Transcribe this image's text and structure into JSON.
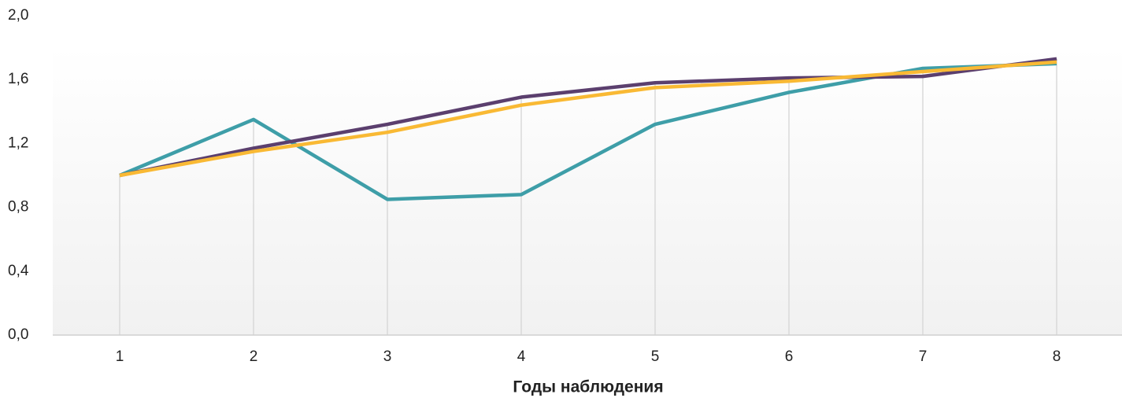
{
  "chart_data": {
    "type": "line",
    "xlabel": "Годы наблюдения",
    "categories": [
      "1",
      "2",
      "3",
      "4",
      "5",
      "6",
      "7",
      "8"
    ],
    "series": [
      {
        "color": "#3e9ea8",
        "values": [
          1.0,
          1.35,
          0.85,
          0.88,
          1.32,
          1.52,
          1.67,
          1.7
        ]
      },
      {
        "color": "#5b3f6e",
        "values": [
          1.0,
          1.17,
          1.32,
          1.49,
          1.58,
          1.61,
          1.62,
          1.73
        ]
      },
      {
        "color": "#f9b934",
        "values": [
          1.0,
          1.15,
          1.27,
          1.44,
          1.55,
          1.59,
          1.65,
          1.71
        ]
      }
    ],
    "ylim": [
      0,
      2
    ],
    "yticks": [
      {
        "value": 0,
        "label": "0,0"
      },
      {
        "value": 0.4,
        "label": "0,4"
      },
      {
        "value": 0.8,
        "label": "0,8"
      },
      {
        "value": 1.2,
        "label": "1,2"
      },
      {
        "value": 1.6,
        "label": "1,6"
      },
      {
        "value": 2,
        "label": "2,0"
      }
    ],
    "drop_lines": true
  }
}
